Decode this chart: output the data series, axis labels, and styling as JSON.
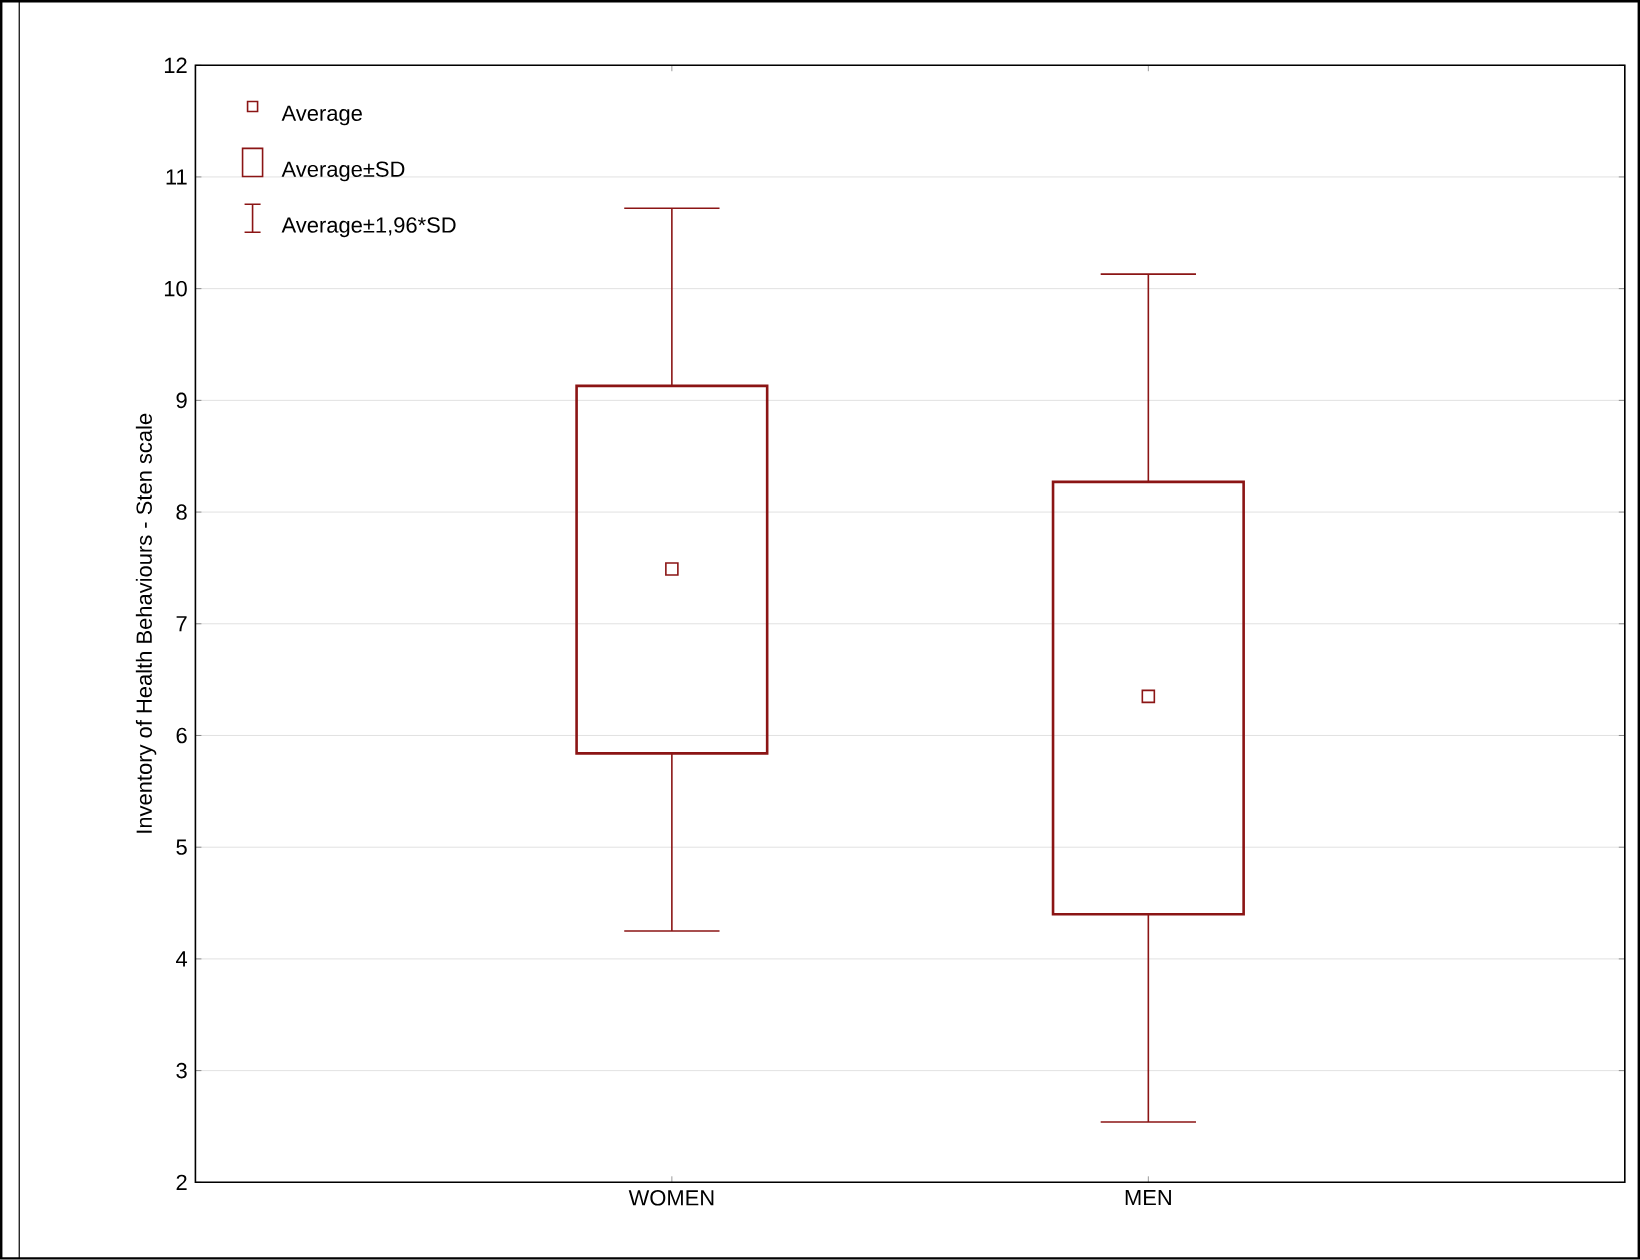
{
  "chart_data": {
    "type": "box",
    "ylabel": "Inventory of Health Behaviours - Sten scale",
    "categories": [
      "WOMEN",
      "MEN"
    ],
    "ylim": [
      2,
      12
    ],
    "yticks": [
      2,
      3,
      4,
      5,
      6,
      7,
      8,
      9,
      10,
      11,
      12
    ],
    "grid": "y",
    "marker": "square",
    "series": [
      {
        "color": "#8b1515",
        "boxes": [
          {
            "low": 4.25,
            "q1": 5.84,
            "median": 7.49,
            "q3": 9.13,
            "high": 10.72
          },
          {
            "low": 2.54,
            "q1": 4.4,
            "median": 6.35,
            "q3": 8.27,
            "high": 10.13
          }
        ]
      }
    ],
    "annotations": [
      "Average",
      "Average±SD",
      "Average±1,96*SD"
    ]
  }
}
